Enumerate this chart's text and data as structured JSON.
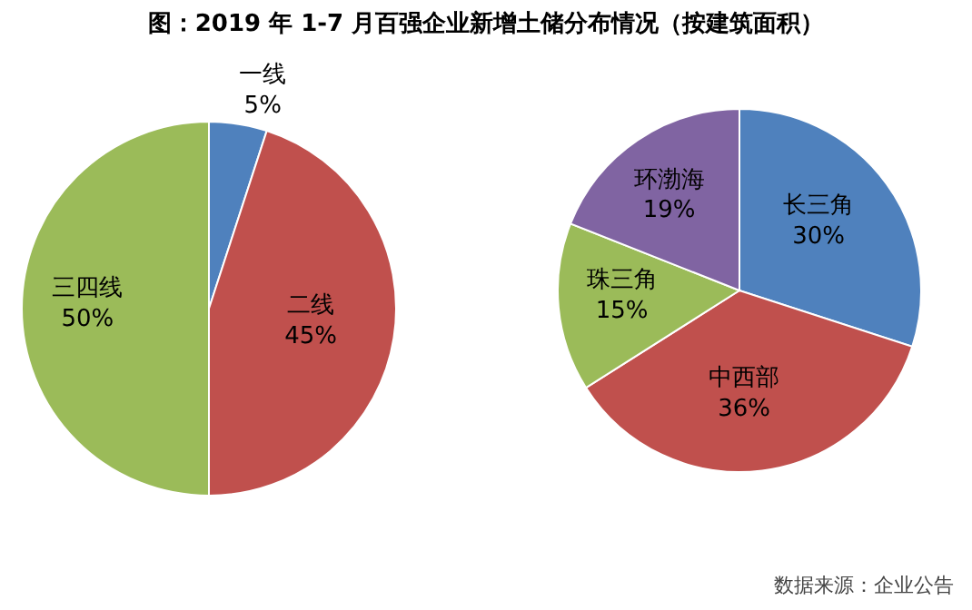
{
  "chart_data": [
    {
      "type": "pie",
      "title": "图：2019 年 1-7 月百强企业新增土储分布情况（按建筑面积）",
      "categories": [
        "一线",
        "二线",
        "三四线"
      ],
      "values": [
        5,
        45,
        50
      ],
      "colors": [
        "#4f81bd",
        "#c0504d",
        "#9bbb59"
      ],
      "value_labels": [
        "5%",
        "45%",
        "50%"
      ]
    },
    {
      "type": "pie",
      "categories": [
        "长三角",
        "中西部",
        "珠三角",
        "环渤海"
      ],
      "values": [
        30,
        36,
        15,
        19
      ],
      "colors": [
        "#4f81bd",
        "#c0504d",
        "#9bbb59",
        "#8064a2"
      ],
      "value_labels": [
        "30%",
        "36%",
        "15%",
        "19%"
      ],
      "annotations": [
        "数据来源：企业公告"
      ]
    }
  ]
}
